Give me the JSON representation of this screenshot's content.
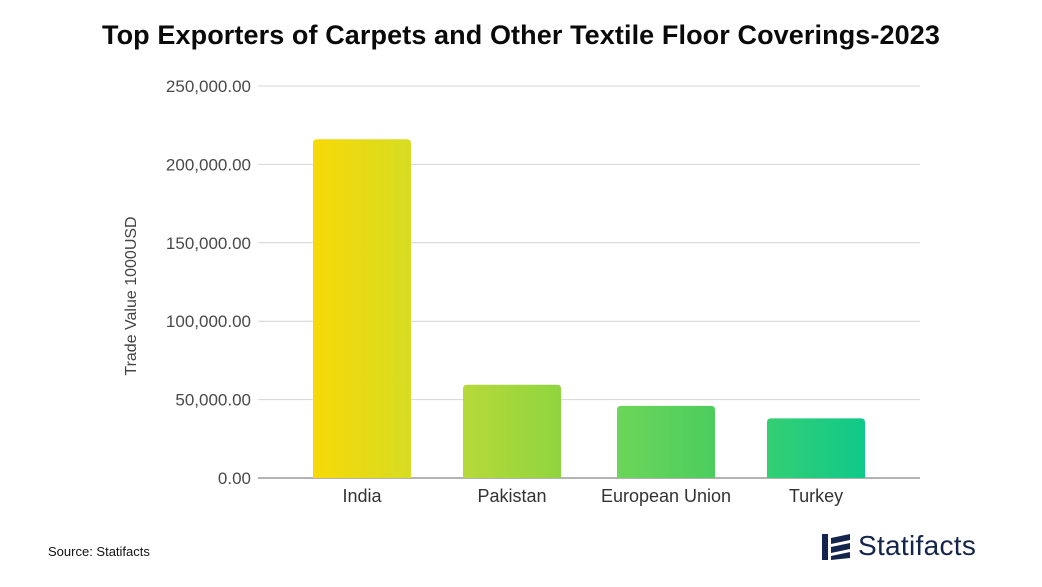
{
  "brand": {
    "name": "Statifacts",
    "color": "#14254d"
  },
  "source_text": "Source: Statifacts",
  "chart_data": {
    "type": "bar",
    "title": "Top Exporters of Carpets and Other Textile Floor Coverings-2023",
    "xlabel": "",
    "ylabel": "Trade Value 1000USD",
    "categories": [
      "India",
      "Pakistan",
      "European Union",
      "Turkey"
    ],
    "values": [
      216000,
      59500,
      46000,
      38000
    ],
    "ylim": [
      0,
      250000
    ],
    "yticks": [
      "0.00",
      "50,000.00",
      "100,000.00",
      "150,000.00",
      "200,000.00",
      "250,000.00"
    ],
    "grid": true,
    "legend": "none",
    "bar_gradients": [
      [
        "#f7d907",
        "#d7dc22"
      ],
      [
        "#b7d93a",
        "#8fd53f"
      ],
      [
        "#6cd55a",
        "#4ccd5e"
      ],
      [
        "#34cf73",
        "#0fc98a"
      ]
    ]
  }
}
